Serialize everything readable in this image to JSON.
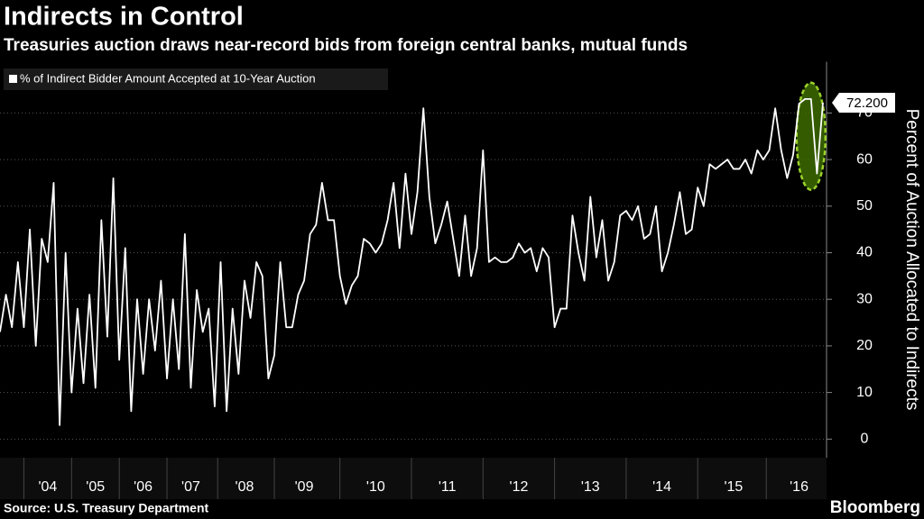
{
  "chart_data": {
    "type": "line",
    "title": "Indirects in Control",
    "subtitle": "Treasuries auction draws near-record bids from foreign central banks, mutual funds",
    "y_label": "Percent of Auction Allocated to Indirects",
    "source": "Source: U.S. Treasury Department",
    "brand": "Bloomberg",
    "categories": [
      null,
      null,
      null,
      null,
      null,
      null,
      null,
      null,
      "'04",
      null,
      null,
      null,
      null,
      null,
      null,
      null,
      "'05",
      null,
      null,
      null,
      null,
      null,
      null,
      null,
      "'06",
      null,
      null,
      null,
      null,
      null,
      null,
      null,
      "'07",
      null,
      null,
      null,
      null,
      null,
      null,
      null,
      null,
      "'08",
      null,
      null,
      null,
      null,
      null,
      null,
      null,
      null,
      null,
      "'09",
      null,
      null,
      null,
      null,
      null,
      null,
      null,
      null,
      null,
      null,
      null,
      "'10",
      null,
      null,
      null,
      null,
      null,
      null,
      null,
      null,
      null,
      null,
      null,
      "'11",
      null,
      null,
      null,
      null,
      null,
      null,
      null,
      null,
      null,
      null,
      null,
      "'12",
      null,
      null,
      null,
      null,
      null,
      null,
      null,
      null,
      null,
      null,
      null,
      "'13",
      null,
      null,
      null,
      null,
      null,
      null,
      null,
      null,
      null,
      null,
      null,
      "'14",
      null,
      null,
      null,
      null,
      null,
      null,
      null,
      null,
      null,
      null,
      null,
      "'15",
      null,
      null,
      null,
      null,
      null,
      null,
      null,
      null,
      null,
      null,
      "'16",
      null,
      null,
      null,
      null
    ],
    "series": [
      {
        "name": "% of Indirect Bidder Amount Accepted at 10-Year Auction",
        "color": "#ffffff",
        "values": [
          23,
          31,
          24,
          38,
          24,
          45,
          20,
          43,
          38,
          55,
          3,
          40,
          10,
          28,
          12,
          31,
          11,
          47,
          22,
          56,
          17,
          41,
          6,
          30,
          14,
          30,
          19,
          34,
          13,
          30,
          15,
          44,
          11,
          32,
          23,
          28,
          7,
          38,
          6,
          28,
          14,
          34,
          26,
          38,
          35,
          13,
          18,
          38,
          24,
          24,
          31,
          34,
          44,
          46,
          55,
          47,
          47,
          35,
          29,
          33,
          35,
          43,
          42,
          40,
          42,
          47,
          55,
          41,
          57,
          44,
          53,
          71,
          52,
          42,
          46,
          51,
          43,
          35,
          48,
          35,
          41,
          62,
          38,
          39,
          38,
          38,
          39,
          42,
          40,
          41,
          36,
          41,
          39,
          24,
          28,
          28,
          48,
          40,
          34,
          52,
          39,
          47,
          34,
          38,
          48,
          49,
          47,
          50,
          43,
          44,
          50,
          36,
          40,
          46,
          53,
          44,
          45,
          54,
          50,
          59,
          58,
          59,
          60,
          58,
          58,
          60,
          57,
          62,
          60,
          62,
          71,
          62,
          56,
          61,
          72,
          73,
          73,
          57,
          72.2
        ],
        "value_labels": [
          null,
          null,
          null,
          null,
          null,
          null,
          null,
          null,
          null,
          null,
          null,
          null,
          null,
          null,
          null,
          null,
          null,
          null,
          null,
          null,
          null,
          null,
          null,
          null,
          null,
          null,
          null,
          null,
          null,
          null,
          null,
          null,
          null,
          null,
          null,
          null,
          null,
          null,
          null,
          null,
          null,
          null,
          null,
          null,
          null,
          null,
          null,
          null,
          null,
          null,
          null,
          null,
          null,
          null,
          null,
          null,
          null,
          null,
          null,
          null,
          null,
          null,
          null,
          null,
          null,
          null,
          null,
          null,
          null,
          null,
          null,
          null,
          null,
          null,
          null,
          null,
          null,
          null,
          null,
          null,
          null,
          null,
          null,
          null,
          null,
          null,
          null,
          null,
          null,
          null,
          null,
          null,
          null,
          null,
          null,
          null,
          null,
          null,
          null,
          null,
          null,
          null,
          null,
          null,
          null,
          null,
          null,
          null,
          null,
          null,
          null,
          null,
          null,
          null,
          null,
          null,
          null,
          null,
          null,
          null,
          null,
          null,
          null,
          null,
          null,
          null,
          null,
          null,
          null,
          null,
          null,
          null,
          null,
          null,
          null,
          null,
          null,
          null,
          "72.200"
        ]
      }
    ],
    "ylim": [
      -4,
      81
    ],
    "yticks": [
      0,
      10,
      20,
      30,
      40,
      50,
      60,
      70
    ],
    "grid": true
  }
}
